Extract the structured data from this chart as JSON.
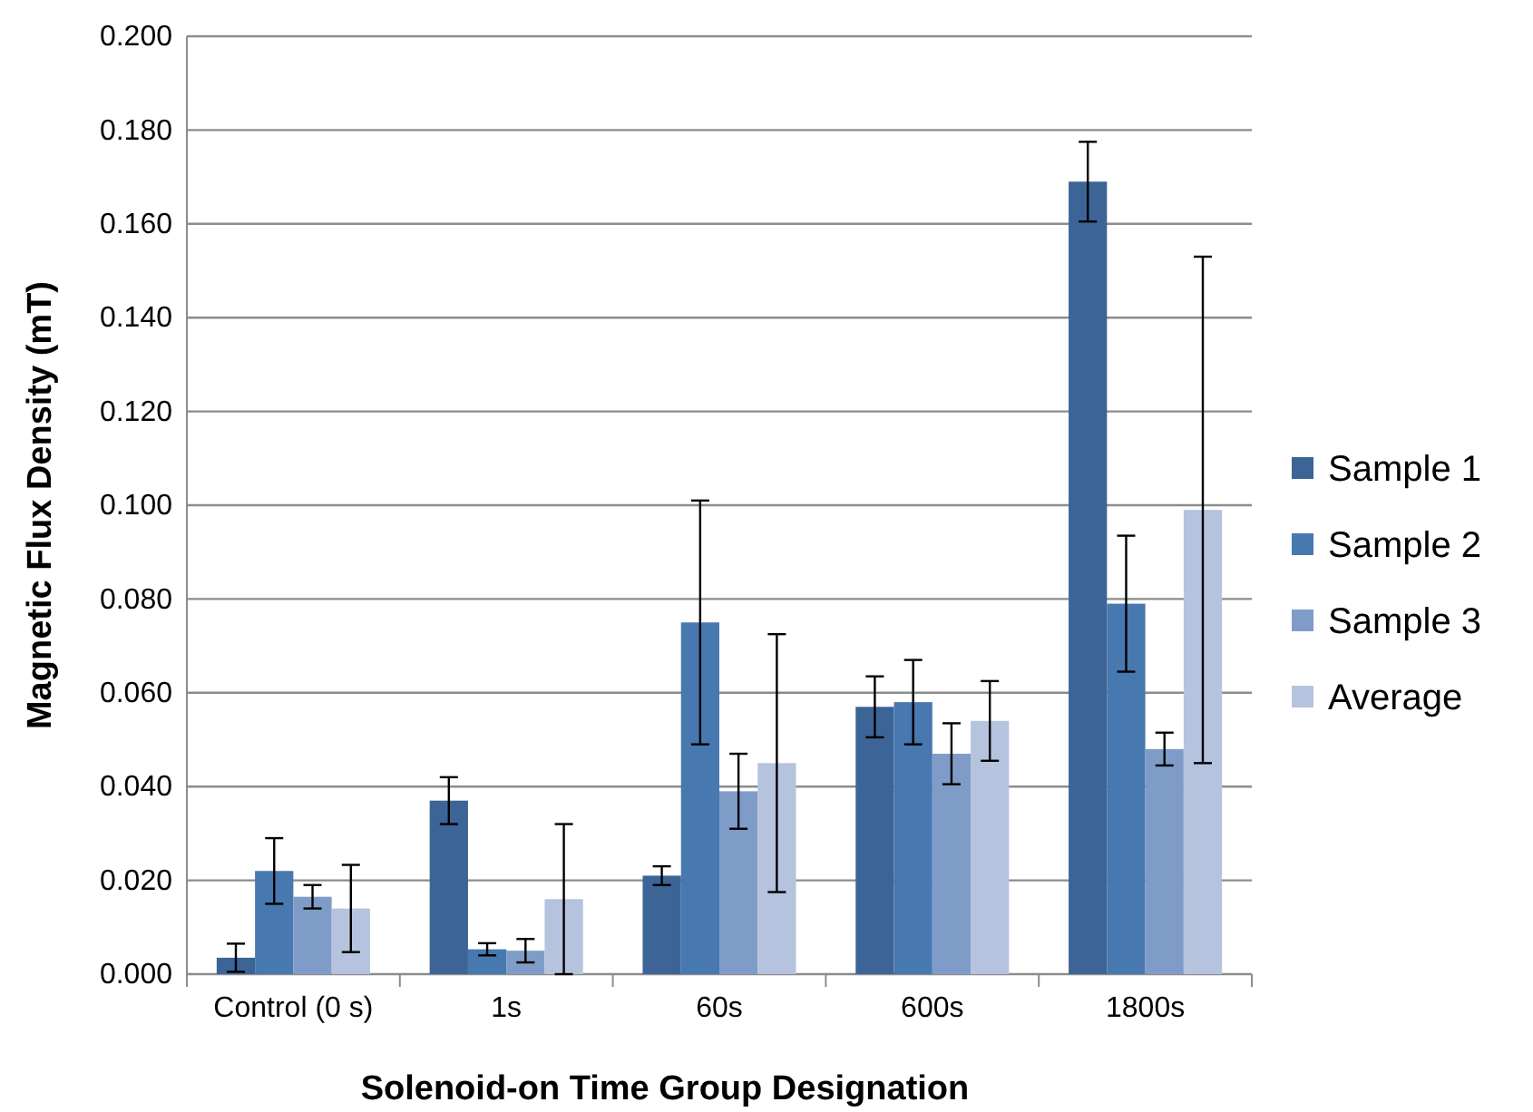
{
  "chart_data": {
    "type": "bar",
    "xlabel": "Solenoid-on Time Group Designation",
    "ylabel": "Magnetic Flux Density (mT)",
    "categories": [
      "Control (0 s)",
      "1s",
      "60s",
      "600s",
      "1800s"
    ],
    "series": [
      {
        "name": "Sample 1",
        "color": "#3c6496",
        "values": [
          0.0035,
          0.037,
          0.021,
          0.057,
          0.169
        ],
        "errors": [
          0.003,
          0.005,
          0.002,
          0.0065,
          0.0085
        ]
      },
      {
        "name": "Sample 2",
        "color": "#4878b0",
        "values": [
          0.022,
          0.0053,
          0.075,
          0.058,
          0.079
        ],
        "errors": [
          0.007,
          0.0013,
          0.026,
          0.009,
          0.0145
        ]
      },
      {
        "name": "Sample 3",
        "color": "#7f9cc8",
        "values": [
          0.0165,
          0.005,
          0.039,
          0.047,
          0.048
        ],
        "errors": [
          0.0025,
          0.0025,
          0.008,
          0.0065,
          0.0035
        ]
      },
      {
        "name": "Average",
        "color": "#b5c3de",
        "values": [
          0.014,
          0.016,
          0.045,
          0.054,
          0.099
        ],
        "errors": [
          0.0093,
          0.016,
          0.0275,
          0.0085,
          0.054
        ]
      }
    ],
    "ylim": [
      0,
      0.2
    ],
    "yticks": [
      {
        "value": 0,
        "label": "0.000"
      },
      {
        "value": 0.02,
        "label": "0.020"
      },
      {
        "value": 0.04,
        "label": "0.040"
      },
      {
        "value": 0.06,
        "label": "0.060"
      },
      {
        "value": 0.08,
        "label": "0.080"
      },
      {
        "value": 0.1,
        "label": "0.100"
      },
      {
        "value": 0.12,
        "label": "0.120"
      },
      {
        "value": 0.14,
        "label": "0.140"
      },
      {
        "value": 0.16,
        "label": "0.160"
      },
      {
        "value": 0.18,
        "label": "0.180"
      },
      {
        "value": 0.2,
        "label": "0.200"
      }
    ],
    "grid": "y",
    "legend": "right"
  }
}
